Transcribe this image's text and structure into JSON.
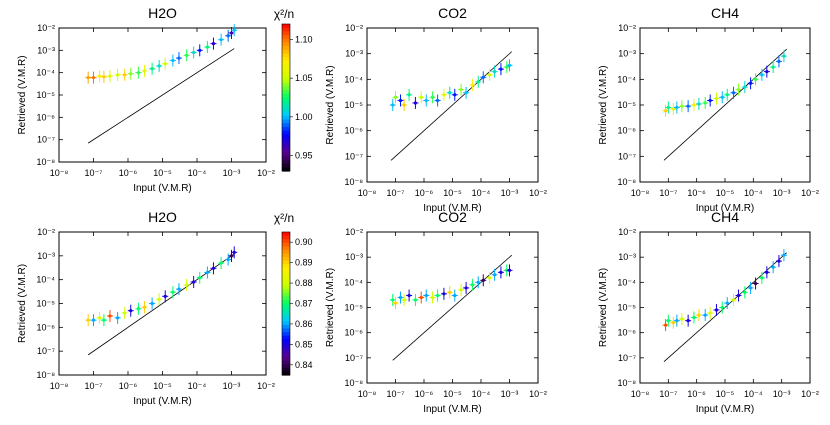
{
  "figure": {
    "rows": [
      {
        "colorbar": {
          "title": "χ²/n",
          "ticks": [
            "1.10",
            "1.05",
            "1.00",
            "0.95"
          ],
          "vmin": 0.93,
          "vmax": 1.12,
          "colors": [
            "#000000",
            "#5a0090",
            "#0000ff",
            "#00c8ff",
            "#00ff66",
            "#ccff00",
            "#ffee00",
            "#ff8800",
            "#ff0000"
          ]
        },
        "panels": [
          {
            "title": "H2O",
            "xlabel": "Input (V.M.R)",
            "ylabel": "Retrieved (V.M.R)",
            "xticks": [
              "10⁻⁸",
              "10⁻⁷",
              "10⁻⁶",
              "10⁻⁵",
              "10⁻⁴",
              "10⁻³",
              "10⁻²"
            ],
            "yticks": [
              "10⁻²",
              "10⁻³",
              "10⁻⁴",
              "10⁻⁵",
              "10⁻⁶",
              "10⁻⁷",
              "10⁻⁸"
            ]
          },
          {
            "title": "CO2",
            "xlabel": "Input (V.M.R)",
            "ylabel": "Retrieved (V.M.R)",
            "xticks": [
              "10⁻⁸",
              "10⁻⁷",
              "10⁻⁶",
              "10⁻⁵",
              "10⁻⁴",
              "10⁻³",
              "10⁻²"
            ],
            "yticks": [
              "10⁻²",
              "10⁻³",
              "10⁻⁴",
              "10⁻⁵",
              "10⁻⁶",
              "10⁻⁷",
              "10⁻⁸"
            ]
          },
          {
            "title": "CH4",
            "xlabel": "Input (V.M.R)",
            "ylabel": "Retrieved (V.M.R)",
            "xticks": [
              "10⁻⁸",
              "10⁻⁷",
              "10⁻⁶",
              "10⁻⁵",
              "10⁻⁴",
              "10⁻³",
              "10⁻²"
            ],
            "yticks": [
              "10⁻²",
              "10⁻³",
              "10⁻⁴",
              "10⁻⁵",
              "10⁻⁶",
              "10⁻⁷",
              "10⁻⁸"
            ]
          }
        ]
      },
      {
        "colorbar": {
          "title": "χ²/n",
          "ticks": [
            "0.90",
            "0.89",
            "0.88",
            "0.87",
            "0.86",
            "0.85",
            "0.84"
          ],
          "vmin": 0.835,
          "vmax": 0.905,
          "colors": [
            "#000000",
            "#5a0090",
            "#0000ff",
            "#00c8ff",
            "#00ff66",
            "#ccff00",
            "#ffee00",
            "#ff8800",
            "#ff0000"
          ]
        },
        "panels": [
          {
            "title": "H2O",
            "xlabel": "Input (V.M.R)",
            "ylabel": "Retrieved (V.M.R)",
            "xticks": [
              "10⁻⁸",
              "10⁻⁷",
              "10⁻⁶",
              "10⁻⁵",
              "10⁻⁴",
              "10⁻³",
              "10⁻²"
            ],
            "yticks": [
              "10⁻²",
              "10⁻³",
              "10⁻⁴",
              "10⁻⁵",
              "10⁻⁶",
              "10⁻⁷",
              "10⁻⁸"
            ]
          },
          {
            "title": "CO2",
            "xlabel": "Input (V.M.R)",
            "ylabel": "Retrieved (V.M.R)",
            "xticks": [
              "10⁻⁸",
              "10⁻⁷",
              "10⁻⁶",
              "10⁻⁵",
              "10⁻⁴",
              "10⁻³",
              "10⁻²"
            ],
            "yticks": [
              "10⁻²",
              "10⁻³",
              "10⁻⁴",
              "10⁻⁵",
              "10⁻⁶",
              "10⁻⁷",
              "10⁻⁸"
            ]
          },
          {
            "title": "CH4",
            "xlabel": "Input (V.M.R)",
            "ylabel": "Retrieved (V.M.R)",
            "xticks": [
              "10⁻⁸",
              "10⁻⁷",
              "10⁻⁶",
              "10⁻⁵",
              "10⁻⁴",
              "10⁻³",
              "10⁻²"
            ],
            "yticks": [
              "10⁻²",
              "10⁻³",
              "10⁻⁴",
              "10⁻⁵",
              "10⁻⁶",
              "10⁻⁷",
              "10⁻⁸"
            ]
          }
        ]
      }
    ]
  },
  "chart_data": [
    {
      "type": "scatter",
      "title": "H2O",
      "xlabel": "Input (V.M.R)",
      "ylabel": "Retrieved (V.M.R)",
      "xscale": "log",
      "yscale": "log",
      "xlim": [
        1e-08,
        0.01
      ],
      "ylim": [
        1e-08,
        0.01
      ],
      "reference_line": {
        "name": "1:1",
        "x": [
          7e-08,
          0.0012
        ]
      },
      "x": [
        7e-08,
        1e-07,
        1.5e-07,
        2e-07,
        3e-07,
        5e-07,
        8e-07,
        1.2e-06,
        2e-06,
        3e-06,
        5e-06,
        8e-06,
        1.2e-05,
        2e-05,
        3e-05,
        5e-05,
        8e-05,
        0.00012,
        0.0002,
        0.0003,
        0.0005,
        0.0008,
        0.001,
        0.0012
      ],
      "y": [
        6e-05,
        6e-05,
        7e-05,
        6.5e-05,
        7e-05,
        8e-05,
        8e-05,
        9e-05,
        0.0001,
        0.00012,
        0.00015,
        0.0002,
        0.00025,
        0.00035,
        0.00045,
        0.0006,
        0.0008,
        0.001,
        0.0014,
        0.002,
        0.003,
        0.0045,
        0.006,
        0.008
      ],
      "chi2n": [
        1.09,
        1.1,
        1.07,
        1.08,
        1.06,
        1.05,
        1.08,
        1.04,
        1.03,
        1.06,
        1.02,
        1.01,
        1.05,
        1.0,
        0.99,
        1.03,
        1.01,
        0.98,
        1.02,
        0.97,
        1.0,
        0.99,
        0.96,
        1.0
      ]
    },
    {
      "type": "scatter",
      "title": "CO2",
      "xlabel": "Input (V.M.R)",
      "ylabel": "Retrieved (V.M.R)",
      "xscale": "log",
      "yscale": "log",
      "xlim": [
        1e-08,
        0.01
      ],
      "ylim": [
        1e-08,
        0.01
      ],
      "reference_line": {
        "name": "1:1",
        "x": [
          7e-08,
          0.0012
        ]
      },
      "x": [
        8e-08,
        1e-07,
        1.5e-07,
        2e-07,
        3e-07,
        5e-07,
        8e-07,
        1.2e-06,
        2e-06,
        3e-06,
        5e-06,
        8e-06,
        1.2e-05,
        2e-05,
        3e-05,
        5e-05,
        8e-05,
        0.00012,
        0.0002,
        0.0003,
        0.0005,
        0.0008,
        0.001
      ],
      "y": [
        1e-05,
        2e-05,
        1.5e-05,
        1e-05,
        2.5e-05,
        1.2e-05,
        2e-05,
        1.5e-05,
        2e-05,
        1.5e-05,
        2.5e-05,
        3e-05,
        2.5e-05,
        4e-05,
        3e-05,
        6e-05,
        8e-05,
        0.00012,
        0.00015,
        0.0002,
        0.00025,
        0.0003,
        0.00035
      ],
      "chi2n": [
        1.0,
        1.04,
        0.98,
        1.08,
        1.02,
        0.97,
        1.05,
        1.0,
        1.03,
        0.99,
        1.06,
        1.01,
        0.98,
        1.04,
        1.0,
        1.07,
        1.02,
        0.99,
        1.05,
        1.01,
        0.98,
        1.03,
        1.0
      ]
    },
    {
      "type": "scatter",
      "title": "CH4",
      "xlabel": "Input (V.M.R)",
      "ylabel": "Retrieved (V.M.R)",
      "xscale": "log",
      "yscale": "log",
      "xlim": [
        1e-08,
        0.01
      ],
      "ylim": [
        1e-08,
        0.01
      ],
      "reference_line": {
        "name": "1:1",
        "x": [
          7e-08,
          0.0015
        ]
      },
      "x": [
        8e-08,
        1e-07,
        1.5e-07,
        2e-07,
        3e-07,
        5e-07,
        8e-07,
        1.2e-06,
        2e-06,
        3e-06,
        5e-06,
        8e-06,
        1.2e-05,
        2e-05,
        3e-05,
        5e-05,
        8e-05,
        0.00012,
        0.0002,
        0.0003,
        0.0005,
        0.0008,
        0.0012
      ],
      "y": [
        6e-06,
        8e-06,
        7e-06,
        8e-06,
        9e-06,
        9e-06,
        1e-05,
        1.1e-05,
        1.2e-05,
        1.5e-05,
        1.8e-05,
        2e-05,
        2.5e-05,
        3e-05,
        4e-05,
        5e-05,
        7e-05,
        0.0001,
        0.00015,
        0.0002,
        0.0003,
        0.0005,
        0.0008
      ],
      "chi2n": [
        1.08,
        1.02,
        1.06,
        1.0,
        1.04,
        0.99,
        1.07,
        1.01,
        1.03,
        0.98,
        1.05,
        1.0,
        1.02,
        0.99,
        1.04,
        1.01,
        0.98,
        1.03,
        1.0,
        0.97,
        1.02,
        0.99,
        1.01
      ]
    },
    {
      "type": "scatter",
      "title": "H2O",
      "xlabel": "Input (V.M.R)",
      "ylabel": "Retrieved (V.M.R)",
      "xscale": "log",
      "yscale": "log",
      "xlim": [
        1e-08,
        0.01
      ],
      "ylim": [
        1e-08,
        0.01
      ],
      "reference_line": {
        "name": "1:1",
        "x": [
          7e-08,
          0.0012
        ]
      },
      "x": [
        7e-08,
        1e-07,
        1.5e-07,
        2e-07,
        3e-07,
        5e-07,
        8e-07,
        1.2e-06,
        2e-06,
        3e-06,
        5e-06,
        8e-06,
        1.2e-05,
        2e-05,
        3e-05,
        5e-05,
        8e-05,
        0.00012,
        0.0002,
        0.0003,
        0.0005,
        0.0008,
        0.001,
        0.0012
      ],
      "y": [
        2e-06,
        2e-06,
        2.5e-06,
        2e-06,
        3e-06,
        2.5e-06,
        4e-06,
        5e-06,
        6e-06,
        7e-06,
        1e-05,
        1.5e-05,
        2e-05,
        3e-05,
        4e-05,
        6e-05,
        8e-05,
        0.00012,
        0.0002,
        0.0003,
        0.0005,
        0.0007,
        0.001,
        0.0014
      ],
      "chi2n": [
        0.89,
        0.86,
        0.88,
        0.87,
        0.9,
        0.86,
        0.88,
        0.85,
        0.87,
        0.89,
        0.86,
        0.88,
        0.85,
        0.87,
        0.86,
        0.88,
        0.85,
        0.87,
        0.86,
        0.85,
        0.87,
        0.86,
        0.84,
        0.85
      ]
    },
    {
      "type": "scatter",
      "title": "CO2",
      "xlabel": "Input (V.M.R)",
      "ylabel": "Retrieved (V.M.R)",
      "xscale": "log",
      "yscale": "log",
      "xlim": [
        1e-08,
        0.01
      ],
      "ylim": [
        1e-08,
        0.01
      ],
      "reference_line": {
        "name": "1:1",
        "x": [
          8e-08,
          0.0012
        ]
      },
      "x": [
        8e-08,
        1e-07,
        1.5e-07,
        2e-07,
        3e-07,
        5e-07,
        8e-07,
        1.2e-06,
        2e-06,
        3e-06,
        5e-06,
        8e-06,
        1.2e-05,
        2e-05,
        3e-05,
        5e-05,
        8e-05,
        0.00012,
        0.0002,
        0.0003,
        0.0005,
        0.0008,
        0.001
      ],
      "y": [
        2e-05,
        1.5e-05,
        2.5e-05,
        2e-05,
        3e-05,
        2e-05,
        2.5e-05,
        3e-05,
        2.5e-05,
        3e-05,
        3.5e-05,
        4e-05,
        3e-05,
        5e-05,
        6e-05,
        8e-05,
        0.0001,
        0.00012,
        0.00015,
        0.0002,
        0.00025,
        0.0003,
        0.0003
      ],
      "chi2n": [
        0.87,
        0.89,
        0.86,
        0.88,
        0.85,
        0.87,
        0.9,
        0.86,
        0.88,
        0.87,
        0.85,
        0.89,
        0.86,
        0.88,
        0.85,
        0.87,
        0.86,
        0.84,
        0.88,
        0.86,
        0.85,
        0.87,
        0.85
      ]
    },
    {
      "type": "scatter",
      "title": "CH4",
      "xlabel": "Input (V.M.R)",
      "ylabel": "Retrieved (V.M.R)",
      "xscale": "log",
      "yscale": "log",
      "xlim": [
        1e-08,
        0.01
      ],
      "ylim": [
        1e-08,
        0.01
      ],
      "reference_line": {
        "name": "1:1",
        "x": [
          7e-08,
          0.0015
        ]
      },
      "x": [
        8e-08,
        1e-07,
        1.5e-07,
        2e-07,
        3e-07,
        5e-07,
        8e-07,
        1.2e-06,
        2e-06,
        3e-06,
        5e-06,
        8e-06,
        1.2e-05,
        2e-05,
        3e-05,
        5e-05,
        8e-05,
        0.00012,
        0.0002,
        0.0003,
        0.0005,
        0.0008,
        0.0012
      ],
      "y": [
        2e-06,
        3e-06,
        2.5e-06,
        3e-06,
        3.5e-06,
        3e-06,
        4e-06,
        5e-06,
        5e-06,
        6e-06,
        8e-06,
        1e-05,
        1.5e-05,
        2e-05,
        3e-05,
        4e-05,
        6e-05,
        9e-05,
        0.00015,
        0.00025,
        0.0004,
        0.0007,
        0.0012
      ],
      "chi2n": [
        0.9,
        0.87,
        0.89,
        0.86,
        0.88,
        0.85,
        0.87,
        0.89,
        0.86,
        0.88,
        0.85,
        0.87,
        0.86,
        0.88,
        0.85,
        0.87,
        0.86,
        0.84,
        0.87,
        0.85,
        0.86,
        0.85,
        0.86
      ]
    }
  ]
}
